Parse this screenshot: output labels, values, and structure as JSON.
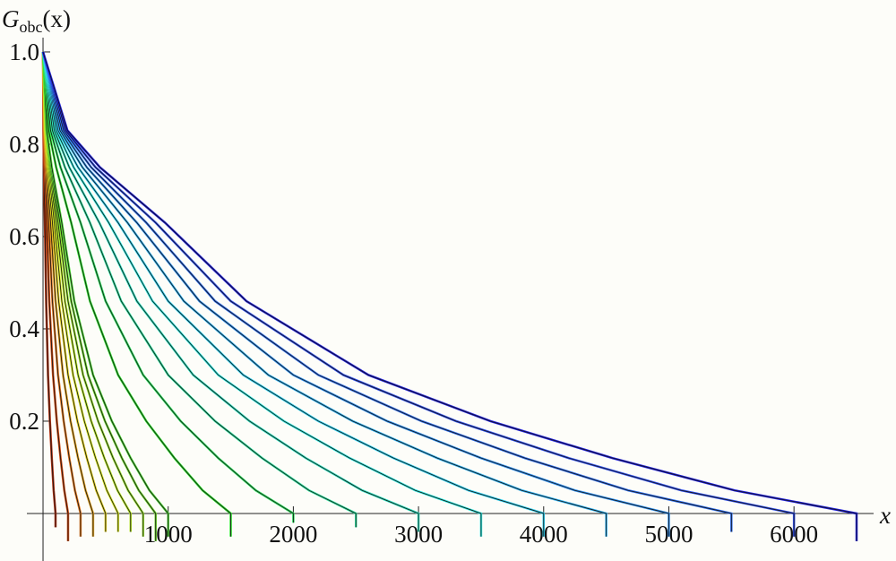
{
  "chart_data": {
    "type": "line",
    "y_label": "G",
    "y_label_sub": "obc",
    "y_label_arg": "(x)",
    "x_label": "x",
    "xlim": [
      -129,
      6636
    ],
    "ylim": [
      -0.103,
      1.031
    ],
    "xticks": [
      1000,
      2000,
      3000,
      4000,
      5000,
      6000
    ],
    "yticks": [
      0.2,
      0.4,
      0.6,
      0.8,
      {
        "value": 1,
        "label": "1.0"
      }
    ],
    "fit_color": "#111111",
    "series": [
      {
        "color": "#b03010",
        "x": [
          0,
          3,
          7,
          15,
          25,
          40,
          55,
          70,
          85,
          100,
          100
        ],
        "values": [
          1.0,
          0.83,
          0.75,
          0.63,
          0.46,
          0.3,
          0.2,
          0.12,
          0.05,
          0.0,
          -0.03
        ]
      },
      {
        "color": "#d04a10",
        "x": [
          0,
          6,
          14,
          30,
          50,
          80,
          110,
          140,
          170,
          200,
          200
        ],
        "values": [
          1.0,
          0.83,
          0.75,
          0.63,
          0.46,
          0.3,
          0.2,
          0.12,
          0.05,
          0.0,
          -0.06
        ]
      },
      {
        "color": "#e07820",
        "x": [
          0,
          9,
          21,
          45,
          75,
          120,
          165,
          210,
          255,
          300,
          300
        ],
        "values": [
          1.0,
          0.83,
          0.75,
          0.63,
          0.46,
          0.3,
          0.2,
          0.12,
          0.05,
          0.0,
          -0.05
        ]
      },
      {
        "color": "#e0a020",
        "x": [
          0,
          12,
          28,
          60,
          100,
          160,
          220,
          280,
          340,
          400,
          400
        ],
        "values": [
          1.0,
          0.83,
          0.75,
          0.63,
          0.46,
          0.3,
          0.2,
          0.12,
          0.05,
          0.0,
          -0.05
        ]
      },
      {
        "color": "#e0d020",
        "x": [
          0,
          15,
          35,
          75,
          125,
          200,
          275,
          350,
          425,
          500,
          500
        ],
        "values": [
          1.0,
          0.83,
          0.75,
          0.63,
          0.46,
          0.3,
          0.2,
          0.12,
          0.05,
          0.0,
          -0.04
        ]
      },
      {
        "color": "#d8e828",
        "x": [
          0,
          18,
          42,
          90,
          150,
          240,
          330,
          420,
          510,
          600,
          600
        ],
        "values": [
          1.0,
          0.83,
          0.75,
          0.63,
          0.46,
          0.3,
          0.2,
          0.12,
          0.05,
          0.0,
          -0.04
        ]
      },
      {
        "color": "#b8e828",
        "x": [
          0,
          21,
          49,
          105,
          175,
          280,
          385,
          490,
          595,
          700,
          700
        ],
        "values": [
          1.0,
          0.83,
          0.75,
          0.63,
          0.46,
          0.3,
          0.2,
          0.12,
          0.05,
          0.0,
          -0.04
        ]
      },
      {
        "color": "#98e030",
        "x": [
          0,
          24,
          56,
          120,
          200,
          320,
          440,
          560,
          680,
          800,
          800
        ],
        "values": [
          1.0,
          0.83,
          0.75,
          0.63,
          0.46,
          0.3,
          0.2,
          0.12,
          0.05,
          0.0,
          -0.05
        ]
      },
      {
        "color": "#70d830",
        "x": [
          0,
          27,
          63,
          135,
          225,
          360,
          495,
          630,
          765,
          900,
          900
        ],
        "values": [
          1.0,
          0.83,
          0.75,
          0.63,
          0.46,
          0.3,
          0.2,
          0.12,
          0.05,
          0.0,
          -0.06
        ]
      },
      {
        "color": "#50d838",
        "x": [
          0,
          30,
          70,
          150,
          250,
          400,
          550,
          700,
          850,
          1000,
          1000
        ],
        "values": [
          1.0,
          0.83,
          0.75,
          0.63,
          0.46,
          0.3,
          0.2,
          0.12,
          0.05,
          0.0,
          -0.05
        ]
      },
      {
        "color": "#30e030",
        "x": [
          0,
          45,
          105,
          225,
          375,
          600,
          825,
          1050,
          1275,
          1500,
          1500
        ],
        "values": [
          1.0,
          0.83,
          0.75,
          0.63,
          0.46,
          0.3,
          0.2,
          0.12,
          0.05,
          0.0,
          -0.05
        ]
      },
      {
        "color": "#30e060",
        "x": [
          0,
          60,
          140,
          300,
          500,
          800,
          1100,
          1400,
          1700,
          2000,
          2000
        ],
        "values": [
          1.0,
          0.83,
          0.75,
          0.63,
          0.46,
          0.3,
          0.2,
          0.12,
          0.05,
          0.0,
          -0.02
        ]
      },
      {
        "color": "#30e0a0",
        "x": [
          0,
          75,
          175,
          375,
          625,
          1000,
          1375,
          1750,
          2125,
          2500,
          2500
        ],
        "values": [
          1.0,
          0.83,
          0.75,
          0.63,
          0.46,
          0.3,
          0.2,
          0.12,
          0.05,
          0.0,
          -0.03
        ]
      },
      {
        "color": "#30e0c0",
        "x": [
          0,
          90,
          210,
          450,
          750,
          1200,
          1650,
          2100,
          2550,
          3000,
          3000
        ],
        "values": [
          1.0,
          0.83,
          0.75,
          0.63,
          0.46,
          0.3,
          0.2,
          0.12,
          0.05,
          0.0,
          -0.04
        ]
      },
      {
        "color": "#30e8e0",
        "x": [
          0,
          105,
          245,
          525,
          875,
          1400,
          1925,
          2450,
          2975,
          3500,
          3500
        ],
        "values": [
          1.0,
          0.83,
          0.75,
          0.63,
          0.46,
          0.3,
          0.2,
          0.12,
          0.05,
          0.0,
          -0.05
        ]
      },
      {
        "color": "#30d0f0",
        "x": [
          0,
          120,
          280,
          600,
          1000,
          1600,
          2200,
          2800,
          3400,
          4000,
          4000
        ],
        "values": [
          1.0,
          0.83,
          0.75,
          0.63,
          0.46,
          0.3,
          0.2,
          0.12,
          0.05,
          0.0,
          -0.05
        ]
      },
      {
        "color": "#30b0f0",
        "x": [
          0,
          135,
          315,
          675,
          1125,
          1800,
          2475,
          3150,
          3825,
          4500,
          4500
        ],
        "values": [
          1.0,
          0.83,
          0.75,
          0.63,
          0.46,
          0.3,
          0.2,
          0.12,
          0.05,
          0.0,
          -0.05
        ]
      },
      {
        "color": "#3090f0",
        "x": [
          0,
          150,
          350,
          750,
          1250,
          2000,
          2750,
          3500,
          4250,
          5000,
          5000
        ],
        "values": [
          1.0,
          0.83,
          0.75,
          0.63,
          0.46,
          0.3,
          0.2,
          0.12,
          0.05,
          0.0,
          -0.05
        ]
      },
      {
        "color": "#3070f0",
        "x": [
          0,
          165,
          385,
          825,
          1375,
          2200,
          3025,
          3850,
          4675,
          5500,
          5500
        ],
        "values": [
          1.0,
          0.83,
          0.75,
          0.63,
          0.46,
          0.3,
          0.2,
          0.12,
          0.05,
          0.0,
          -0.04
        ]
      },
      {
        "color": "#3050f0",
        "x": [
          0,
          180,
          420,
          900,
          1500,
          2400,
          3300,
          4200,
          5100,
          6000,
          6000
        ],
        "values": [
          1.0,
          0.83,
          0.75,
          0.63,
          0.46,
          0.3,
          0.2,
          0.12,
          0.05,
          0.0,
          -0.05
        ]
      },
      {
        "color": "#2020e0",
        "x": [
          0,
          195,
          455,
          975,
          1625,
          2600,
          3575,
          4550,
          5525,
          6500,
          6500
        ],
        "values": [
          1.0,
          0.83,
          0.75,
          0.63,
          0.46,
          0.3,
          0.2,
          0.12,
          0.05,
          0.0,
          -0.06
        ]
      }
    ]
  }
}
